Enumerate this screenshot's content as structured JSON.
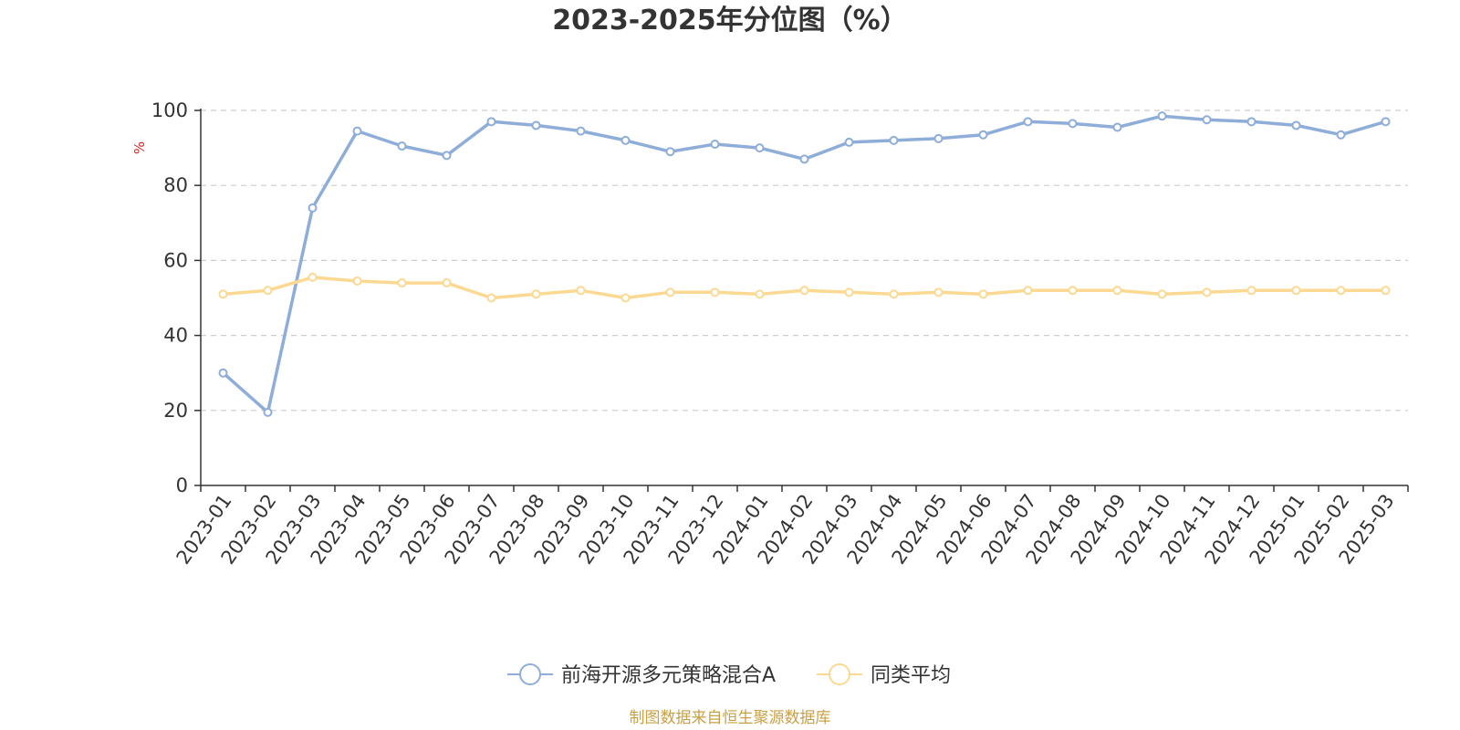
{
  "chart_data": {
    "type": "line",
    "title": "2023-2025年分位图（%）",
    "ylabel": "%",
    "ylim": [
      0,
      100
    ],
    "yticks": [
      0,
      20,
      40,
      60,
      80,
      100
    ],
    "grid": true,
    "legend_position": "bottom",
    "categories": [
      "2023-01",
      "2023-02",
      "2023-03",
      "2023-04",
      "2023-05",
      "2023-06",
      "2023-07",
      "2023-08",
      "2023-09",
      "2023-10",
      "2023-11",
      "2023-12",
      "2024-01",
      "2024-02",
      "2024-03",
      "2024-04",
      "2024-05",
      "2024-06",
      "2024-07",
      "2024-08",
      "2024-09",
      "2024-10",
      "2024-11",
      "2024-12",
      "2025-01",
      "2025-02",
      "2025-03"
    ],
    "series": [
      {
        "name": "前海开源多元策略混合A",
        "color": "#8eadd9",
        "values": [
          30,
          19.5,
          74,
          94.5,
          90.5,
          88,
          97,
          96,
          94.5,
          92,
          89,
          91,
          90,
          87,
          91.5,
          92,
          92.5,
          93.5,
          97,
          96.5,
          95.5,
          98.5,
          97.5,
          97,
          96,
          93.5,
          97
        ]
      },
      {
        "name": "同类平均",
        "color": "#fbd992",
        "values": [
          51,
          52,
          55.5,
          54.5,
          54,
          54,
          50,
          51,
          52,
          50,
          51.5,
          51.5,
          51,
          52,
          51.5,
          51,
          51.5,
          51,
          52,
          52,
          52,
          51,
          51.5,
          52,
          52,
          52,
          52
        ]
      }
    ]
  },
  "source_text": "制图数据来自恒生聚源数据库",
  "colors": {
    "axis": "#333333",
    "grid": "#cccccc",
    "unit": "#e02020",
    "source": "#c8a046"
  }
}
